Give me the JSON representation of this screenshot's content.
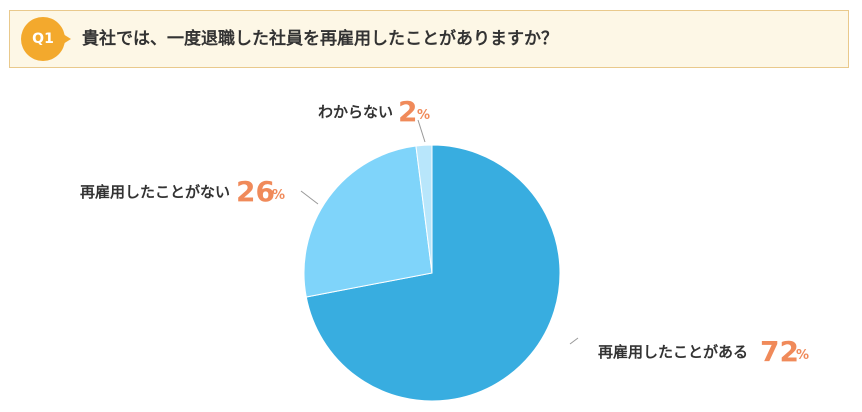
{
  "question": {
    "badge": "Q1",
    "text": "貴社では、一度退職した社員を再雇用したことがありますか？"
  },
  "colors": {
    "accent": "#f3a92d",
    "value_text": "#f08a5a",
    "leader": "#999999"
  },
  "chart_data": {
    "type": "pie",
    "slices": [
      {
        "label": "再雇用したことがある",
        "value": 72,
        "unit": "%",
        "color": "#38ade0"
      },
      {
        "label": "再雇用したことがない",
        "value": 26,
        "unit": "%",
        "color": "#7fd4fa"
      },
      {
        "label": "わからない",
        "value": 2,
        "unit": "%",
        "color": "#b8e6fb"
      }
    ]
  }
}
